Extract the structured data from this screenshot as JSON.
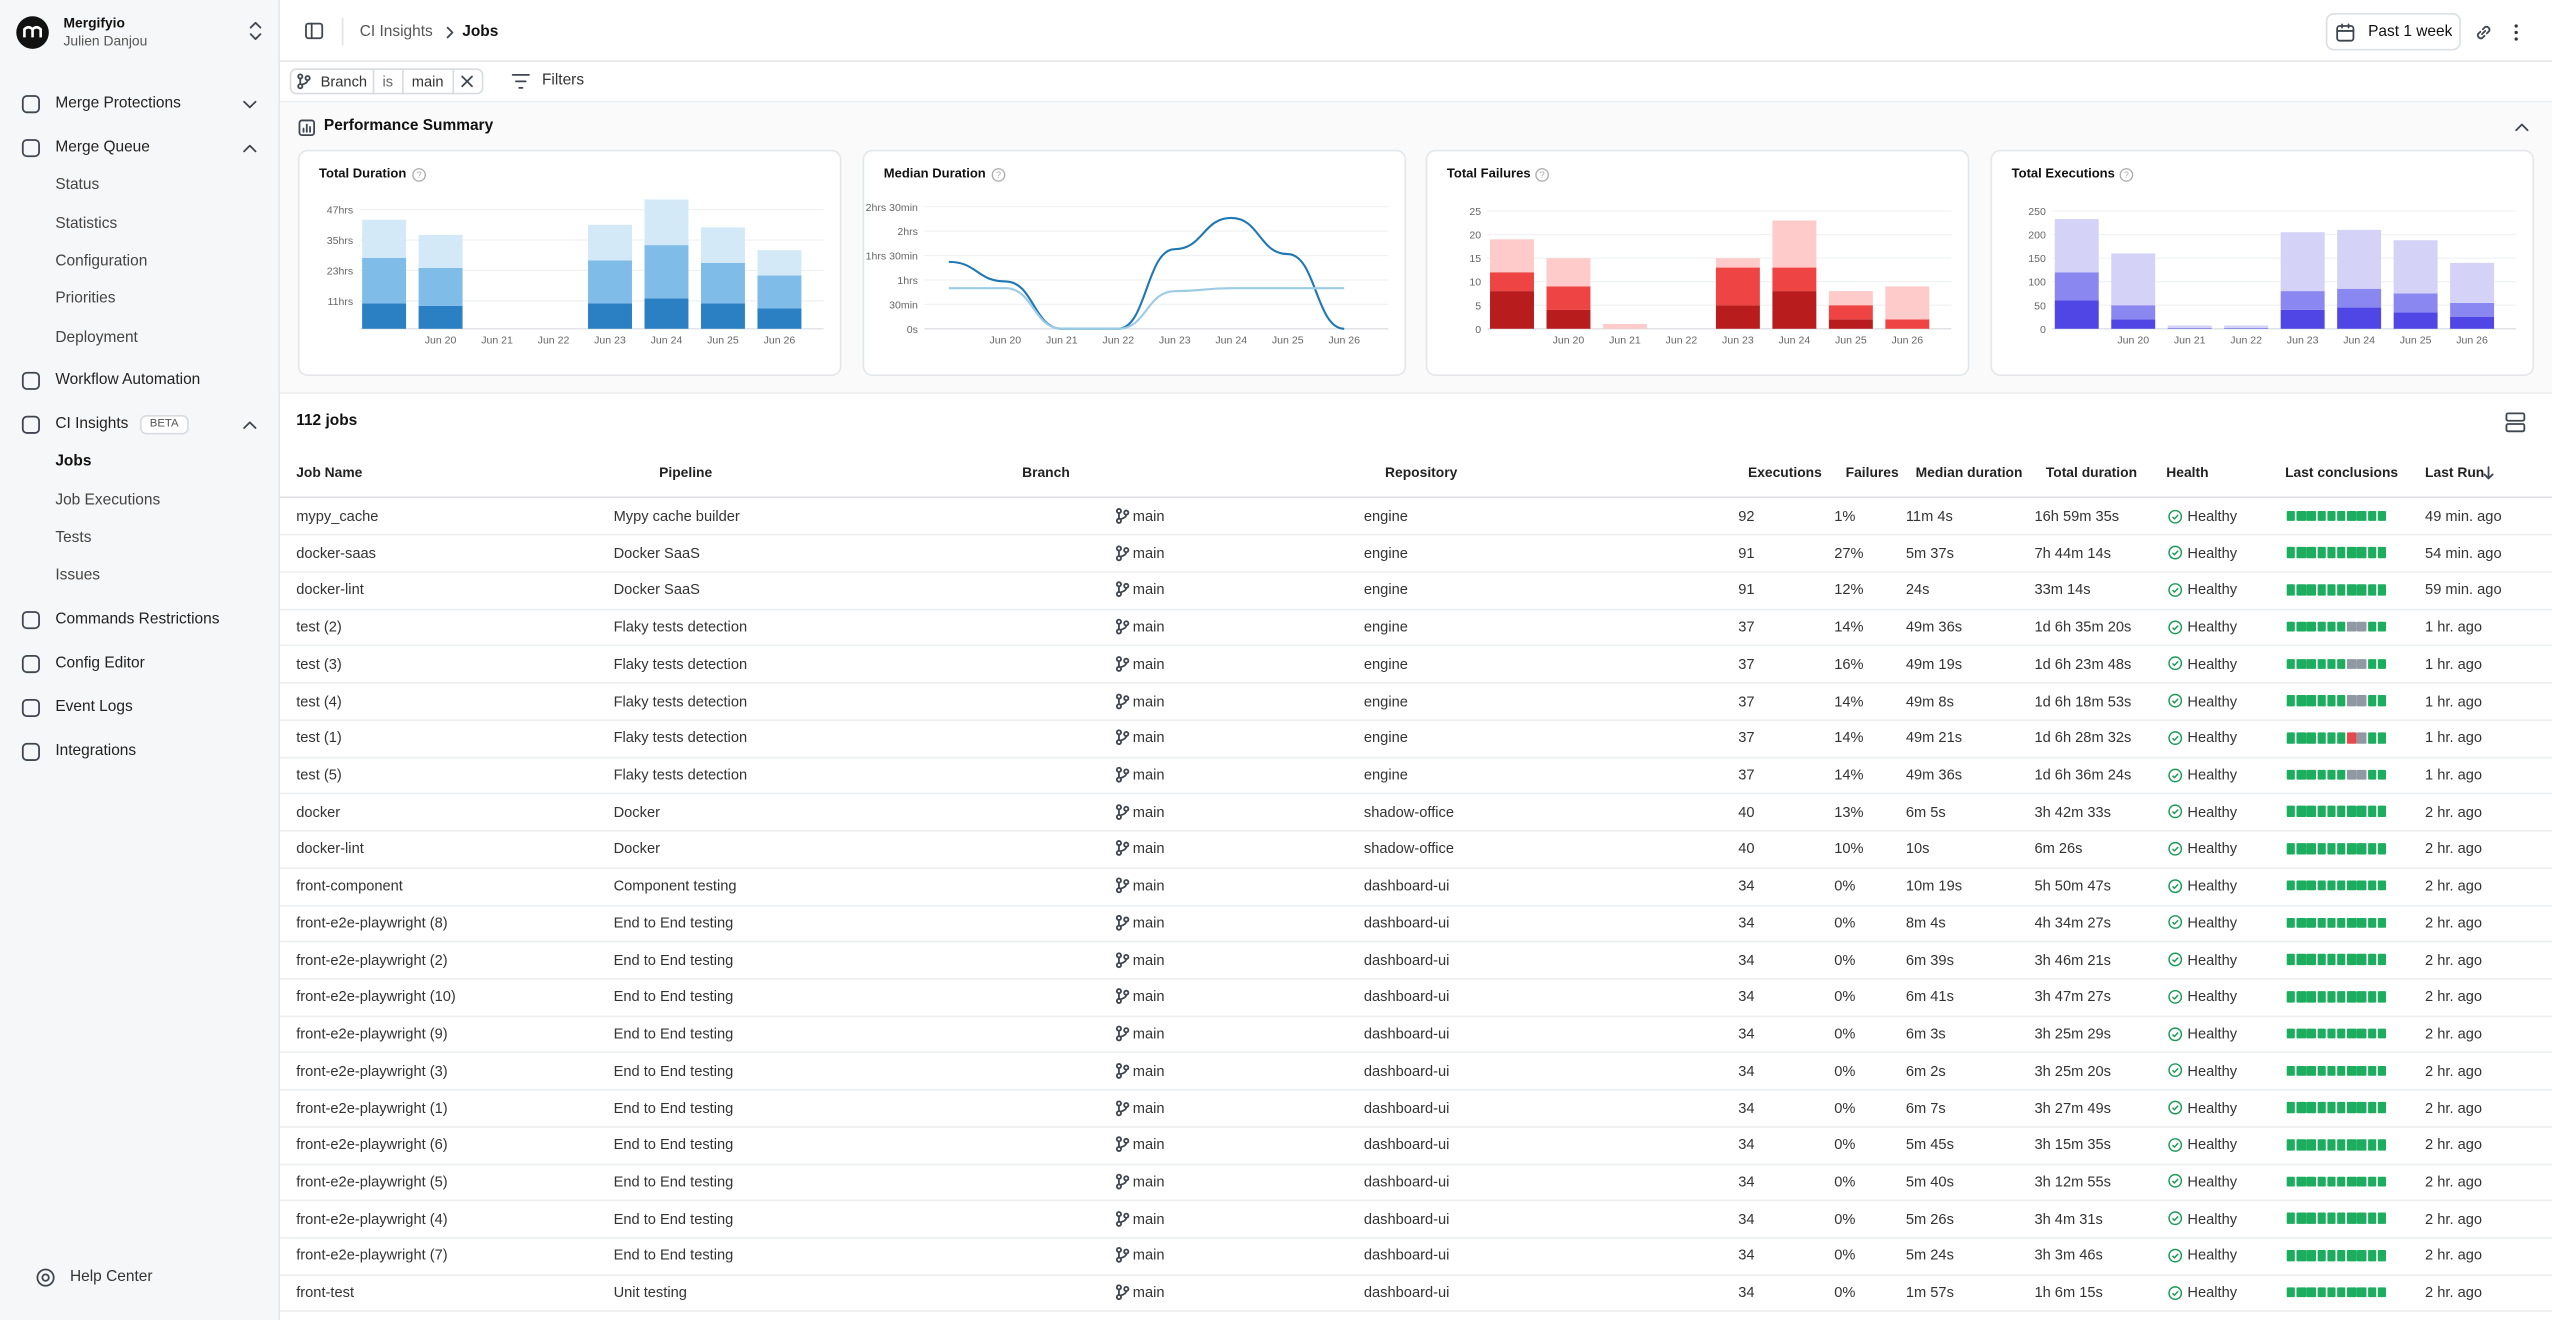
{
  "sidebar": {
    "organization": "Mergifyio",
    "user": "Julien Danjou",
    "nav": [
      {
        "label": "Merge Protections",
        "collapsed": true
      },
      {
        "label": "Merge Queue",
        "items": [
          "Status",
          "Statistics",
          "Configuration",
          "Priorities",
          "Deployment"
        ]
      },
      {
        "label": "Workflow Automation"
      },
      {
        "label": "CI Insights",
        "badge": "BETA",
        "items": [
          "Jobs",
          "Job Executions",
          "Tests",
          "Issues"
        ]
      },
      {
        "label": "Commands Restrictions"
      },
      {
        "label": "Config Editor"
      },
      {
        "label": "Event Logs"
      },
      {
        "label": "Integrations"
      }
    ],
    "footer": "Help Center"
  },
  "topbar": {
    "breadcrumb": [
      "CI Insights",
      "Jobs"
    ],
    "date_range": "Past 1 week"
  },
  "filters": {
    "chip": [
      "Branch",
      "is",
      "main"
    ],
    "button": "Filters"
  },
  "performance_summary": {
    "title": "Performance Summary"
  },
  "chart_data": [
    {
      "type": "bar",
      "title": "Total Duration",
      "categories": [
        null,
        "Jun 20",
        "Jun 21",
        "Jun 22",
        "Jun 23",
        "Jun 24",
        "Jun 25",
        "Jun 26"
      ],
      "series": [
        {
          "color": "#2a80c2",
          "values": [
            10,
            9,
            0,
            0,
            10,
            12,
            10,
            8
          ]
        },
        {
          "color": "#7fbde8",
          "values": [
            18,
            15,
            0,
            0,
            17,
            21,
            16,
            13
          ]
        },
        {
          "color": "#d3e9f7",
          "values": [
            15,
            13,
            0,
            0,
            14,
            18,
            14,
            10
          ]
        }
      ],
      "ylim": [
        0,
        52
      ],
      "yticks": [
        {
          "value": 11,
          "label": "11hrs"
        },
        {
          "value": 23,
          "label": "23hrs"
        },
        {
          "value": 35,
          "label": "35hrs"
        },
        {
          "value": 47,
          "label": "47hrs"
        }
      ],
      "grid": true
    },
    {
      "type": "line",
      "title": "Median Duration",
      "categories": [
        null,
        "Jun 20",
        "Jun 21",
        "Jun 22",
        "Jun 23",
        "Jun 24",
        "Jun 25",
        "Jun 26"
      ],
      "series": [
        {
          "color": "#1f78b4",
          "values": [
            1.37,
            0.97,
            0,
            0,
            1.63,
            2.27,
            1.53,
            0
          ]
        },
        {
          "color": "#9ccbe6",
          "values": [
            0.83,
            0.83,
            0,
            0,
            0.77,
            0.83,
            0.83,
            0.83
          ]
        }
      ],
      "ylim": [
        0,
        2.7
      ],
      "yticks": [
        {
          "value": 0,
          "label": "0s"
        },
        {
          "value": 0.5,
          "label": "30min"
        },
        {
          "value": 1,
          "label": "1hrs"
        },
        {
          "value": 1.5,
          "label": "1hrs 30min"
        },
        {
          "value": 2,
          "label": "2hrs"
        },
        {
          "value": 2.5,
          "label": "2hrs 30min"
        }
      ],
      "grid": true
    },
    {
      "type": "bar",
      "title": "Total Failures",
      "categories": [
        null,
        "Jun 20",
        "Jun 21",
        "Jun 22",
        "Jun 23",
        "Jun 24",
        "Jun 25",
        "Jun 26"
      ],
      "series": [
        {
          "color": "#b91c1c",
          "values": [
            8,
            4,
            0,
            0,
            5,
            8,
            2,
            0
          ]
        },
        {
          "color": "#ef4444",
          "values": [
            4,
            5,
            0,
            0,
            8,
            5,
            3,
            2
          ]
        },
        {
          "color": "#fecaca",
          "values": [
            7,
            6,
            1,
            0,
            2,
            10,
            3,
            7
          ]
        }
      ],
      "ylim": [
        0,
        28
      ],
      "yticks": [
        0,
        5,
        10,
        15,
        20,
        25
      ],
      "grid": true
    },
    {
      "type": "bar",
      "title": "Total Executions",
      "categories": [
        null,
        "Jun 20",
        "Jun 21",
        "Jun 22",
        "Jun 23",
        "Jun 24",
        "Jun 25",
        "Jun 26"
      ],
      "series": [
        {
          "color": "#4f46e5",
          "values": [
            60,
            20,
            1,
            1,
            40,
            45,
            35,
            25
          ]
        },
        {
          "color": "#8b87f0",
          "values": [
            60,
            30,
            1,
            1,
            40,
            40,
            40,
            30
          ]
        },
        {
          "color": "#d4d2f7",
          "values": [
            113,
            110,
            5,
            5,
            125,
            125,
            113,
            85
          ]
        }
      ],
      "ylim": [
        0,
        280
      ],
      "yticks": [
        0,
        50,
        100,
        150,
        200,
        250
      ],
      "grid": true
    }
  ],
  "table": {
    "count": "112 jobs",
    "headers": [
      "Job Name",
      "Pipeline",
      "Branch",
      "Repository",
      "Executions",
      "Failures",
      "Median duration",
      "Total duration",
      "Health",
      "Last conclusions",
      "Last Run"
    ],
    "rows": [
      {
        "job": "mypy_cache",
        "pipeline": "Mypy cache builder",
        "branch": "main",
        "repository": "engine",
        "executions": 92,
        "failures": "1%",
        "median_duration": "11m 4s",
        "total_duration": "16h 59m 35s",
        "health": "Healthy",
        "conclusions": [
          "#1cad5e",
          "#1cad5e",
          "#1cad5e",
          "#1cad5e",
          "#1cad5e",
          "#1cad5e",
          "#1cad5e",
          "#1cad5e",
          "#1cad5e",
          "#1cad5e"
        ],
        "last_run": "49 min. ago"
      },
      {
        "job": "docker-saas",
        "pipeline": "Docker SaaS",
        "branch": "main",
        "repository": "engine",
        "executions": 91,
        "failures": "27%",
        "median_duration": "5m 37s",
        "total_duration": "7h 44m 14s",
        "health": "Healthy",
        "conclusions": [
          "#1cad5e",
          "#1cad5e",
          "#1cad5e",
          "#1cad5e",
          "#1cad5e",
          "#1cad5e",
          "#1cad5e",
          "#1cad5e",
          "#1cad5e",
          "#1cad5e"
        ],
        "last_run": "54 min. ago"
      },
      {
        "job": "docker-lint",
        "pipeline": "Docker SaaS",
        "branch": "main",
        "repository": "engine",
        "executions": 91,
        "failures": "12%",
        "median_duration": "24s",
        "total_duration": "33m 14s",
        "health": "Healthy",
        "conclusions": [
          "#1cad5e",
          "#1cad5e",
          "#1cad5e",
          "#1cad5e",
          "#1cad5e",
          "#1cad5e",
          "#1cad5e",
          "#1cad5e",
          "#1cad5e",
          "#1cad5e"
        ],
        "last_run": "59 min. ago"
      },
      {
        "job": "test (2)",
        "pipeline": "Flaky tests detection",
        "branch": "main",
        "repository": "engine",
        "executions": 37,
        "failures": "14%",
        "median_duration": "49m 36s",
        "total_duration": "1d 6h 35m 20s",
        "health": "Healthy",
        "conclusions": [
          "#1cad5e",
          "#1cad5e",
          "#1cad5e",
          "#1cad5e",
          "#1cad5e",
          "#1cad5e",
          "#8f98a3",
          "#8f98a3",
          "#1cad5e",
          "#1cad5e"
        ],
        "last_run": "1 hr. ago"
      },
      {
        "job": "test (3)",
        "pipeline": "Flaky tests detection",
        "branch": "main",
        "repository": "engine",
        "executions": 37,
        "failures": "16%",
        "median_duration": "49m 19s",
        "total_duration": "1d 6h 23m 48s",
        "health": "Healthy",
        "conclusions": [
          "#1cad5e",
          "#1cad5e",
          "#1cad5e",
          "#1cad5e",
          "#1cad5e",
          "#1cad5e",
          "#8f98a3",
          "#8f98a3",
          "#1cad5e",
          "#1cad5e"
        ],
        "last_run": "1 hr. ago"
      },
      {
        "job": "test (4)",
        "pipeline": "Flaky tests detection",
        "branch": "main",
        "repository": "engine",
        "executions": 37,
        "failures": "14%",
        "median_duration": "49m 8s",
        "total_duration": "1d 6h 18m 53s",
        "health": "Healthy",
        "conclusions": [
          "#1cad5e",
          "#1cad5e",
          "#1cad5e",
          "#1cad5e",
          "#1cad5e",
          "#1cad5e",
          "#8f98a3",
          "#8f98a3",
          "#1cad5e",
          "#1cad5e"
        ],
        "last_run": "1 hr. ago"
      },
      {
        "job": "test (1)",
        "pipeline": "Flaky tests detection",
        "branch": "main",
        "repository": "engine",
        "executions": 37,
        "failures": "14%",
        "median_duration": "49m 21s",
        "total_duration": "1d 6h 28m 32s",
        "health": "Healthy",
        "conclusions": [
          "#1cad5e",
          "#1cad5e",
          "#1cad5e",
          "#1cad5e",
          "#1cad5e",
          "#1cad5e",
          "#e5484d",
          "#8f98a3",
          "#1cad5e",
          "#1cad5e"
        ],
        "last_run": "1 hr. ago"
      },
      {
        "job": "test (5)",
        "pipeline": "Flaky tests detection",
        "branch": "main",
        "repository": "engine",
        "executions": 37,
        "failures": "14%",
        "median_duration": "49m 36s",
        "total_duration": "1d 6h 36m 24s",
        "health": "Healthy",
        "conclusions": [
          "#1cad5e",
          "#1cad5e",
          "#1cad5e",
          "#1cad5e",
          "#1cad5e",
          "#1cad5e",
          "#8f98a3",
          "#8f98a3",
          "#1cad5e",
          "#1cad5e"
        ],
        "last_run": "1 hr. ago"
      },
      {
        "job": "docker",
        "pipeline": "Docker",
        "branch": "main",
        "repository": "shadow-office",
        "executions": 40,
        "failures": "13%",
        "median_duration": "6m 5s",
        "total_duration": "3h 42m 33s",
        "health": "Healthy",
        "conclusions": [
          "#1cad5e",
          "#1cad5e",
          "#1cad5e",
          "#1cad5e",
          "#1cad5e",
          "#1cad5e",
          "#1cad5e",
          "#1cad5e",
          "#1cad5e",
          "#1cad5e"
        ],
        "last_run": "2 hr. ago"
      },
      {
        "job": "docker-lint",
        "pipeline": "Docker",
        "branch": "main",
        "repository": "shadow-office",
        "executions": 40,
        "failures": "10%",
        "median_duration": "10s",
        "total_duration": "6m 26s",
        "health": "Healthy",
        "conclusions": [
          "#1cad5e",
          "#1cad5e",
          "#1cad5e",
          "#1cad5e",
          "#1cad5e",
          "#1cad5e",
          "#1cad5e",
          "#1cad5e",
          "#1cad5e",
          "#1cad5e"
        ],
        "last_run": "2 hr. ago"
      },
      {
        "job": "front-component",
        "pipeline": "Component testing",
        "branch": "main",
        "repository": "dashboard-ui",
        "executions": 34,
        "failures": "0%",
        "median_duration": "10m 19s",
        "total_duration": "5h 50m 47s",
        "health": "Healthy",
        "conclusions": [
          "#1cad5e",
          "#1cad5e",
          "#1cad5e",
          "#1cad5e",
          "#1cad5e",
          "#1cad5e",
          "#1cad5e",
          "#1cad5e",
          "#1cad5e",
          "#1cad5e"
        ],
        "last_run": "2 hr. ago"
      },
      {
        "job": "front-e2e-playwright (8)",
        "pipeline": "End to End testing",
        "branch": "main",
        "repository": "dashboard-ui",
        "executions": 34,
        "failures": "0%",
        "median_duration": "8m 4s",
        "total_duration": "4h 34m 27s",
        "health": "Healthy",
        "conclusions": [
          "#1cad5e",
          "#1cad5e",
          "#1cad5e",
          "#1cad5e",
          "#1cad5e",
          "#1cad5e",
          "#1cad5e",
          "#1cad5e",
          "#1cad5e",
          "#1cad5e"
        ],
        "last_run": "2 hr. ago"
      },
      {
        "job": "front-e2e-playwright (2)",
        "pipeline": "End to End testing",
        "branch": "main",
        "repository": "dashboard-ui",
        "executions": 34,
        "failures": "0%",
        "median_duration": "6m 39s",
        "total_duration": "3h 46m 21s",
        "health": "Healthy",
        "conclusions": [
          "#1cad5e",
          "#1cad5e",
          "#1cad5e",
          "#1cad5e",
          "#1cad5e",
          "#1cad5e",
          "#1cad5e",
          "#1cad5e",
          "#1cad5e",
          "#1cad5e"
        ],
        "last_run": "2 hr. ago"
      },
      {
        "job": "front-e2e-playwright (10)",
        "pipeline": "End to End testing",
        "branch": "main",
        "repository": "dashboard-ui",
        "executions": 34,
        "failures": "0%",
        "median_duration": "6m 41s",
        "total_duration": "3h 47m 27s",
        "health": "Healthy",
        "conclusions": [
          "#1cad5e",
          "#1cad5e",
          "#1cad5e",
          "#1cad5e",
          "#1cad5e",
          "#1cad5e",
          "#1cad5e",
          "#1cad5e",
          "#1cad5e",
          "#1cad5e"
        ],
        "last_run": "2 hr. ago"
      },
      {
        "job": "front-e2e-playwright (9)",
        "pipeline": "End to End testing",
        "branch": "main",
        "repository": "dashboard-ui",
        "executions": 34,
        "failures": "0%",
        "median_duration": "6m 3s",
        "total_duration": "3h 25m 29s",
        "health": "Healthy",
        "conclusions": [
          "#1cad5e",
          "#1cad5e",
          "#1cad5e",
          "#1cad5e",
          "#1cad5e",
          "#1cad5e",
          "#1cad5e",
          "#1cad5e",
          "#1cad5e",
          "#1cad5e"
        ],
        "last_run": "2 hr. ago"
      },
      {
        "job": "front-e2e-playwright (3)",
        "pipeline": "End to End testing",
        "branch": "main",
        "repository": "dashboard-ui",
        "executions": 34,
        "failures": "0%",
        "median_duration": "6m 2s",
        "total_duration": "3h 25m 20s",
        "health": "Healthy",
        "conclusions": [
          "#1cad5e",
          "#1cad5e",
          "#1cad5e",
          "#1cad5e",
          "#1cad5e",
          "#1cad5e",
          "#1cad5e",
          "#1cad5e",
          "#1cad5e",
          "#1cad5e"
        ],
        "last_run": "2 hr. ago"
      },
      {
        "job": "front-e2e-playwright (1)",
        "pipeline": "End to End testing",
        "branch": "main",
        "repository": "dashboard-ui",
        "executions": 34,
        "failures": "0%",
        "median_duration": "6m 7s",
        "total_duration": "3h 27m 49s",
        "health": "Healthy",
        "conclusions": [
          "#1cad5e",
          "#1cad5e",
          "#1cad5e",
          "#1cad5e",
          "#1cad5e",
          "#1cad5e",
          "#1cad5e",
          "#1cad5e",
          "#1cad5e",
          "#1cad5e"
        ],
        "last_run": "2 hr. ago"
      },
      {
        "job": "front-e2e-playwright (6)",
        "pipeline": "End to End testing",
        "branch": "main",
        "repository": "dashboard-ui",
        "executions": 34,
        "failures": "0%",
        "median_duration": "5m 45s",
        "total_duration": "3h 15m 35s",
        "health": "Healthy",
        "conclusions": [
          "#1cad5e",
          "#1cad5e",
          "#1cad5e",
          "#1cad5e",
          "#1cad5e",
          "#1cad5e",
          "#1cad5e",
          "#1cad5e",
          "#1cad5e",
          "#1cad5e"
        ],
        "last_run": "2 hr. ago"
      },
      {
        "job": "front-e2e-playwright (5)",
        "pipeline": "End to End testing",
        "branch": "main",
        "repository": "dashboard-ui",
        "executions": 34,
        "failures": "0%",
        "median_duration": "5m 40s",
        "total_duration": "3h 12m 55s",
        "health": "Healthy",
        "conclusions": [
          "#1cad5e",
          "#1cad5e",
          "#1cad5e",
          "#1cad5e",
          "#1cad5e",
          "#1cad5e",
          "#1cad5e",
          "#1cad5e",
          "#1cad5e",
          "#1cad5e"
        ],
        "last_run": "2 hr. ago"
      },
      {
        "job": "front-e2e-playwright (4)",
        "pipeline": "End to End testing",
        "branch": "main",
        "repository": "dashboard-ui",
        "executions": 34,
        "failures": "0%",
        "median_duration": "5m 26s",
        "total_duration": "3h 4m 31s",
        "health": "Healthy",
        "conclusions": [
          "#1cad5e",
          "#1cad5e",
          "#1cad5e",
          "#1cad5e",
          "#1cad5e",
          "#1cad5e",
          "#1cad5e",
          "#1cad5e",
          "#1cad5e",
          "#1cad5e"
        ],
        "last_run": "2 hr. ago"
      },
      {
        "job": "front-e2e-playwright (7)",
        "pipeline": "End to End testing",
        "branch": "main",
        "repository": "dashboard-ui",
        "executions": 34,
        "failures": "0%",
        "median_duration": "5m 24s",
        "total_duration": "3h 3m 46s",
        "health": "Healthy",
        "conclusions": [
          "#1cad5e",
          "#1cad5e",
          "#1cad5e",
          "#1cad5e",
          "#1cad5e",
          "#1cad5e",
          "#1cad5e",
          "#1cad5e",
          "#1cad5e",
          "#1cad5e"
        ],
        "last_run": "2 hr. ago"
      },
      {
        "job": "front-test",
        "pipeline": "Unit testing",
        "branch": "main",
        "repository": "dashboard-ui",
        "executions": 34,
        "failures": "0%",
        "median_duration": "1m 57s",
        "total_duration": "1h 6m 15s",
        "health": "Healthy",
        "conclusions": [
          "#1cad5e",
          "#1cad5e",
          "#1cad5e",
          "#1cad5e",
          "#1cad5e",
          "#1cad5e",
          "#1cad5e",
          "#1cad5e",
          "#1cad5e",
          "#1cad5e"
        ],
        "last_run": "2 hr. ago"
      }
    ]
  }
}
